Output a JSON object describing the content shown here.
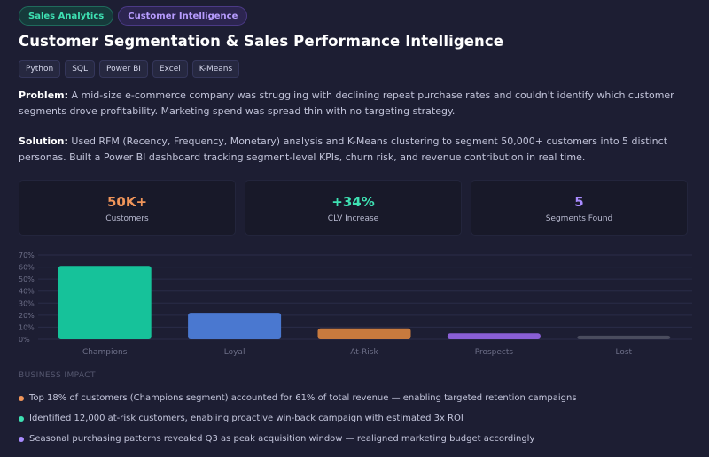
{
  "tags": [
    {
      "label": "Sales Analytics",
      "color": "#3ee0b2"
    },
    {
      "label": "Customer Intelligence",
      "color": "#b79cff"
    }
  ],
  "title": "Customer Segmentation & Sales Performance Intelligence",
  "tech": [
    "Python",
    "SQL",
    "Power BI",
    "Excel",
    "K-Means"
  ],
  "problem": {
    "label": "Problem:",
    "text": "A mid-size e-commerce company was struggling with declining repeat purchase rates and couldn't identify which customer segments drove profitability. Marketing spend was spread thin with no targeting strategy."
  },
  "solution": {
    "label": "Solution:",
    "text": "Used RFM (Recency, Frequency, Monetary) analysis and K-Means clustering to segment 50,000+ customers into 5 distinct personas. Built a Power BI dashboard tracking segment-level KPIs, churn risk, and revenue contribution in real time."
  },
  "stats": [
    {
      "value": "50K+",
      "label": "Customers",
      "color": "#f0955a"
    },
    {
      "value": "+34%",
      "label": "CLV Increase",
      "color": "#3ee0b2"
    },
    {
      "value": "5",
      "label": "Segments Found",
      "color": "#a98bff"
    }
  ],
  "chart_data": {
    "type": "bar",
    "categories": [
      "Champions",
      "Loyal",
      "At-Risk",
      "Prospects",
      "Lost"
    ],
    "values": [
      61,
      22,
      9,
      5,
      3
    ],
    "colors": [
      "#16c29a",
      "#4a78d0",
      "#c87a3e",
      "#8a5fd6",
      "#4a4c5e"
    ],
    "ylim": [
      0,
      70
    ],
    "yticks": [
      "0%",
      "10%",
      "20%",
      "30%",
      "40%",
      "50%",
      "60%",
      "70%"
    ],
    "grid": true,
    "title": "",
    "xlabel": "",
    "ylabel": ""
  },
  "impact": {
    "heading": "BUSINESS IMPACT",
    "items": [
      {
        "text": "Top 18% of customers (Champions segment) accounted for 61% of total revenue — enabling targeted retention campaigns",
        "color": "#f0955a"
      },
      {
        "text": "Identified 12,000 at-risk customers, enabling proactive win-back campaign with estimated 3x ROI",
        "color": "#3ee0b2"
      },
      {
        "text": "Seasonal purchasing patterns revealed Q3 as peak acquisition window — realigned marketing budget accordingly",
        "color": "#a98bff"
      }
    ]
  }
}
